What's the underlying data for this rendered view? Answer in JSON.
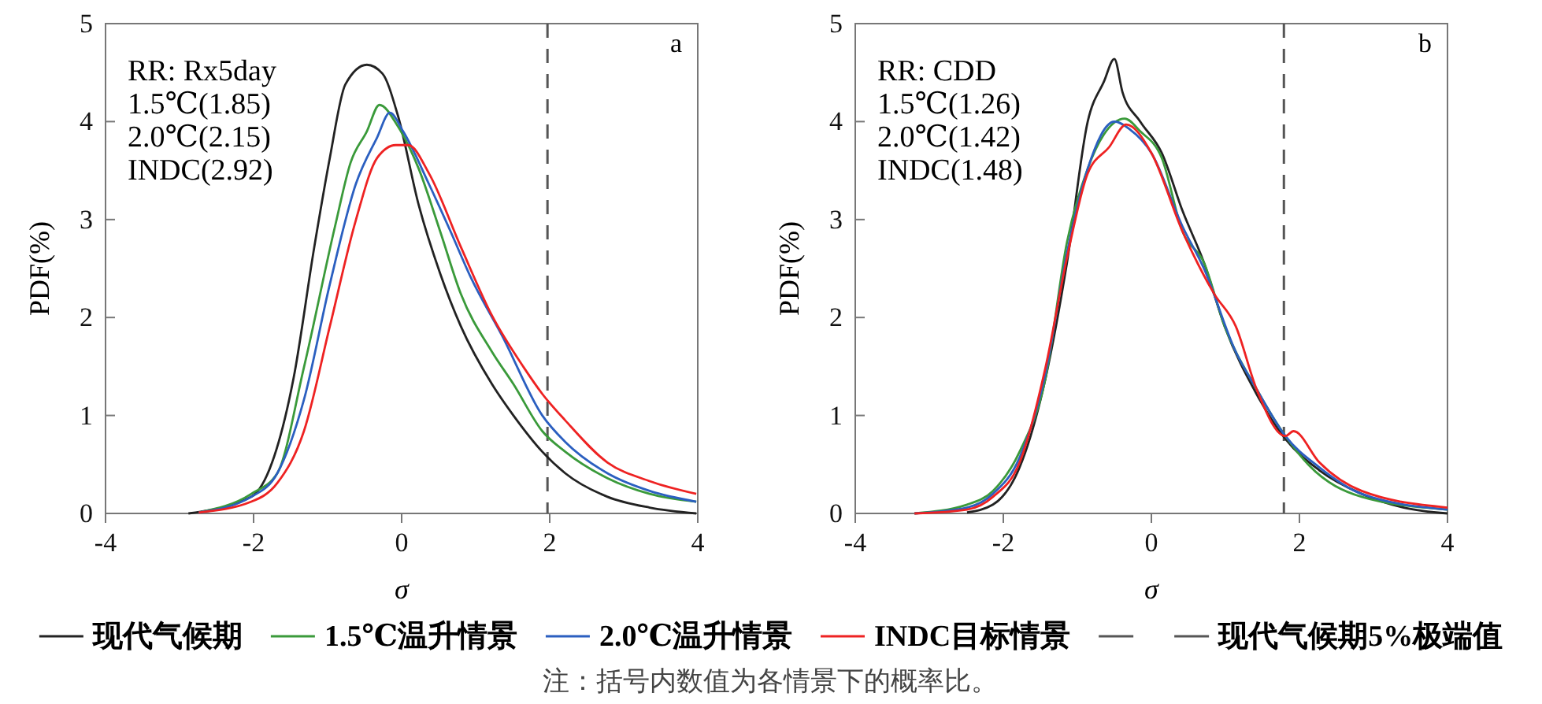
{
  "chart_data": [
    {
      "type": "line",
      "title": "a",
      "xlabel": "σ",
      "ylabel": "PDF(%)",
      "xlim": [
        -4,
        4
      ],
      "xticks": [
        -4,
        -2,
        0,
        2,
        4
      ],
      "ylim": [
        0,
        5
      ],
      "yticks": [
        0,
        1,
        2,
        3,
        4,
        5
      ],
      "grid": false,
      "legend": "bottom",
      "marker": "none",
      "line_style": "solid",
      "annotations": [
        "RR: Rx5day",
        "1.5℃(1.85)",
        "2.0℃(2.15)",
        "INDC(2.92)"
      ],
      "ref_lines": [
        {
          "axis": "x",
          "value": 1.97,
          "label": "现代气候期5%极端值",
          "color": "#555555",
          "line_style": "dashed"
        }
      ],
      "series": [
        {
          "name": "现代气候期",
          "color": "#222222",
          "x": [
            -2.88,
            -2.03,
            -1.75,
            -1.46,
            -1.18,
            -0.97,
            -0.76,
            -0.47,
            -0.26,
            -0.05,
            0.23,
            0.52,
            0.8,
            1.22,
            1.51,
            1.9,
            2.21,
            2.78,
            3.35,
            3.98
          ],
          "values": [
            0,
            0.17,
            0.52,
            1.38,
            2.72,
            3.63,
            4.38,
            4.58,
            4.49,
            4.06,
            3.15,
            2.45,
            1.91,
            1.32,
            1.0,
            0.63,
            0.41,
            0.17,
            0.06,
            0
          ]
        },
        {
          "name": "1.5℃温升情景",
          "color": "#3a9a3a",
          "x": [
            -2.74,
            -2.03,
            -1.68,
            -1.32,
            -0.9,
            -0.69,
            -0.47,
            -0.3,
            -0.05,
            0.23,
            0.52,
            0.8,
            1.22,
            1.51,
            1.9,
            2.21,
            2.78,
            3.35,
            3.98
          ],
          "values": [
            0.01,
            0.2,
            0.41,
            1.49,
            2.93,
            3.58,
            3.9,
            4.17,
            3.95,
            3.52,
            2.88,
            2.24,
            1.65,
            1.32,
            0.84,
            0.63,
            0.36,
            0.2,
            0.12
          ]
        },
        {
          "name": "2.0℃温升情景",
          "color": "#2b5fc0",
          "x": [
            -2.74,
            -2.03,
            -1.68,
            -1.32,
            -0.97,
            -0.62,
            -0.33,
            -0.16,
            0.02,
            0.37,
            0.66,
            0.94,
            1.36,
            1.9,
            2.21,
            2.78,
            3.35,
            3.98
          ],
          "values": [
            0.01,
            0.17,
            0.41,
            1.16,
            2.34,
            3.36,
            3.84,
            4.09,
            3.9,
            3.36,
            2.88,
            2.4,
            1.81,
            1.0,
            0.73,
            0.41,
            0.23,
            0.12
          ]
        },
        {
          "name": "INDC目标情景",
          "color": "#ee2222",
          "x": [
            -2.74,
            -2.03,
            -1.68,
            -1.32,
            -0.97,
            -0.62,
            -0.33,
            -0.08,
            0.09,
            0.37,
            0.8,
            1.22,
            1.65,
            1.9,
            2.21,
            2.78,
            3.35,
            3.98
          ],
          "values": [
            0.01,
            0.12,
            0.31,
            0.84,
            1.91,
            2.99,
            3.63,
            3.76,
            3.76,
            3.47,
            2.72,
            2.02,
            1.49,
            1.22,
            0.95,
            0.52,
            0.33,
            0.2
          ]
        }
      ]
    },
    {
      "type": "line",
      "title": "b",
      "xlabel": "σ",
      "ylabel": "PDF(%)",
      "xlim": [
        -4,
        4
      ],
      "xticks": [
        -4,
        -2,
        0,
        2,
        4
      ],
      "ylim": [
        0,
        5
      ],
      "yticks": [
        0,
        1,
        2,
        3,
        4,
        5
      ],
      "grid": false,
      "marker": "none",
      "line_style": "solid",
      "annotations": [
        "RR: CDD",
        "1.5℃(1.26)",
        "2.0℃(1.42)",
        "INDC(1.48)",
        "注：括号内数值为各情景下的概率比。"
      ],
      "ref_lines": [
        {
          "axis": "x",
          "value": 1.79,
          "color": "#555555",
          "line_style": "dashed"
        }
      ],
      "series": [
        {
          "color": "#222222",
          "x": [
            -2.49,
            -2.14,
            -1.78,
            -1.43,
            -1.14,
            -0.86,
            -0.64,
            -0.5,
            -0.39,
            -0.15,
            0.14,
            0.42,
            0.71,
            0.99,
            1.42,
            1.81,
            2.27,
            2.84,
            3.41,
            4.0
          ],
          "values": [
            0.01,
            0.09,
            0.47,
            1.38,
            2.56,
            4.0,
            4.41,
            4.64,
            4.3,
            4.0,
            3.68,
            3.09,
            2.56,
            1.91,
            1.22,
            0.76,
            0.44,
            0.2,
            0.06,
            0
          ]
        },
        {
          "color": "#3a9a3a",
          "x": [
            -3.2,
            -2.49,
            -2.14,
            -1.78,
            -1.43,
            -1.14,
            -0.86,
            -0.64,
            -0.36,
            -0.15,
            0.14,
            0.42,
            0.71,
            0.99,
            1.42,
            1.81,
            2.13,
            2.84,
            4.0
          ],
          "values": [
            0,
            0.09,
            0.23,
            0.63,
            1.38,
            2.77,
            3.52,
            3.87,
            4.03,
            3.9,
            3.63,
            2.88,
            2.56,
            1.91,
            1.27,
            0.79,
            0.49,
            0.17,
            0.04
          ]
        },
        {
          "color": "#2b5fc0",
          "x": [
            -3.2,
            -2.49,
            -2.14,
            -1.78,
            -1.43,
            -1.14,
            -0.86,
            -0.5,
            -0.29,
            0,
            0.42,
            0.71,
            1.14,
            1.42,
            1.81,
            2.27,
            2.84,
            4.0
          ],
          "values": [
            0,
            0.06,
            0.2,
            0.57,
            1.43,
            2.66,
            3.52,
            4.0,
            3.92,
            3.68,
            2.93,
            2.5,
            1.65,
            1.27,
            0.79,
            0.47,
            0.2,
            0.04
          ]
        },
        {
          "color": "#ee2222",
          "x": [
            -3.2,
            -2.49,
            -2.14,
            -1.78,
            -1.43,
            -1.14,
            -0.86,
            -0.57,
            -0.34,
            0,
            0.42,
            0.85,
            1.14,
            1.42,
            1.81,
            1.92,
            2.27,
            2.84,
            4.0
          ],
          "values": [
            0,
            0.04,
            0.17,
            0.52,
            1.49,
            2.61,
            3.47,
            3.74,
            3.97,
            3.68,
            2.88,
            2.24,
            1.91,
            1.27,
            0.79,
            0.84,
            0.52,
            0.23,
            0.06
          ]
        }
      ]
    }
  ]
}
